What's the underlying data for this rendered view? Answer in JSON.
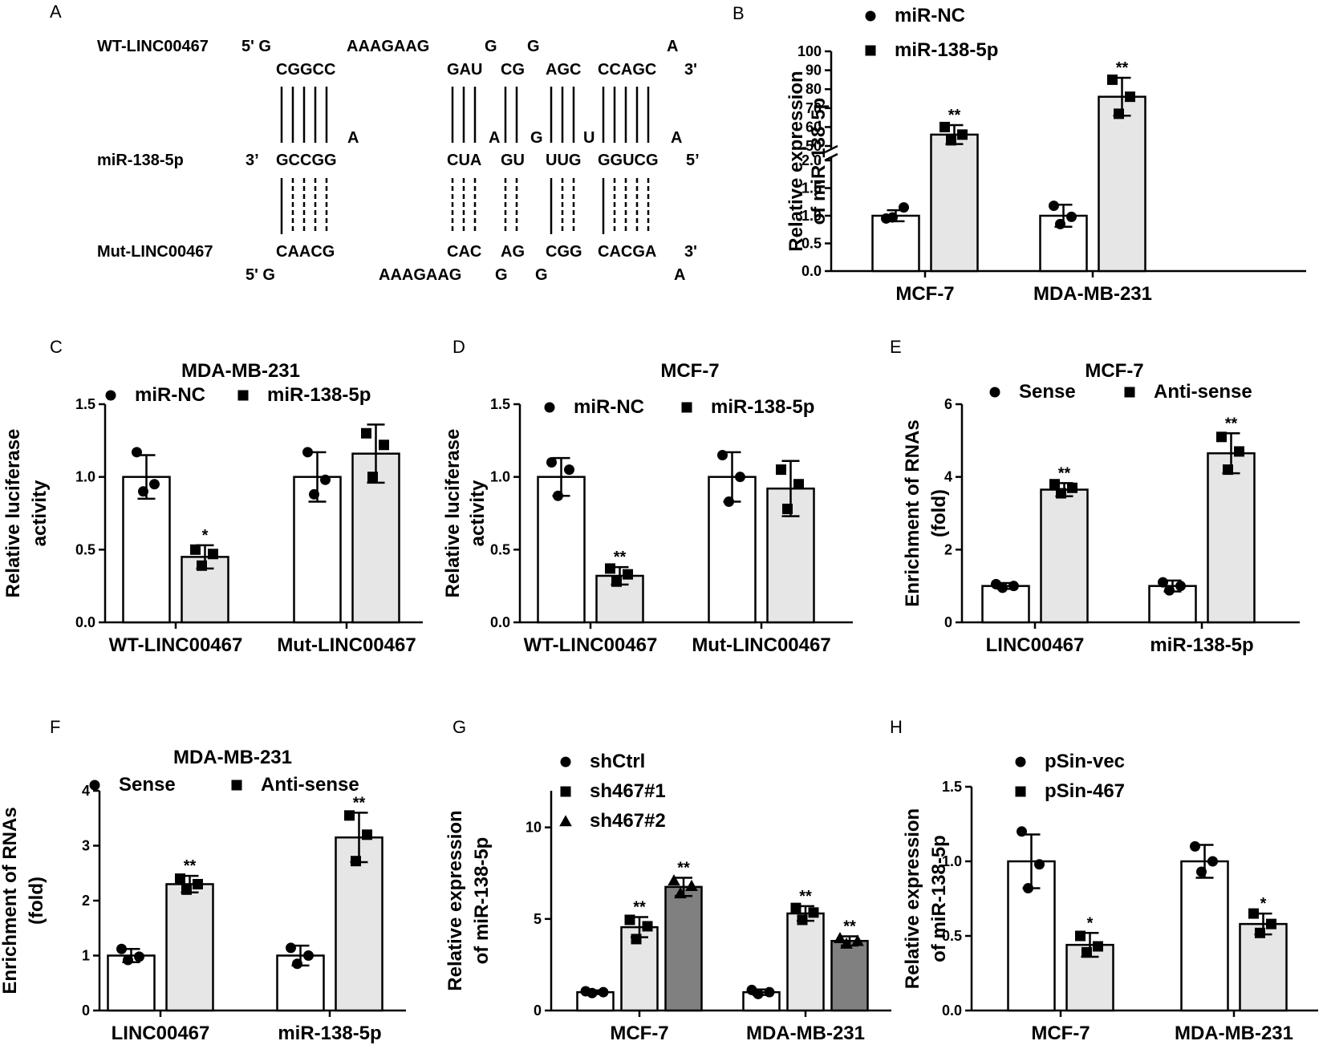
{
  "figure": {
    "panel_labels": [
      "A",
      "B",
      "C",
      "D",
      "E",
      "F",
      "G",
      "H"
    ]
  },
  "colors": {
    "bar_white": "#ffffff",
    "bar_light": "#e6e6e6",
    "bar_dark": "#808080",
    "axis": "#000000"
  },
  "panel_a": {
    "wt_label": "WT-LINC00467",
    "mir_label": "miR-138-5p",
    "mut_label": "Mut-LINC00467",
    "wt_top_row": [
      "5' G",
      "AAAGAAG",
      "G",
      "G",
      "A"
    ],
    "wt_pair_row": [
      "CGGCC",
      "GAU",
      "CG",
      "AGC",
      "CCAGC",
      "3'"
    ],
    "mir_bulge_row": [
      "A",
      "A",
      "G",
      "U",
      "A"
    ],
    "mir_row": [
      "3’",
      "GCCGG",
      "CUA",
      "GU",
      "UUG",
      "GGUCG",
      "5’"
    ],
    "mut_pair_row": [
      "CAACG",
      "CAC",
      "AG",
      "CGG",
      "CACGA",
      "3'"
    ],
    "mut_bottom_row": [
      "5' G",
      "AAAGAAG",
      "G",
      "G",
      "A"
    ]
  },
  "chart_data": [
    {
      "panel": "B",
      "type": "bar",
      "title": "",
      "ylabel": "Relative expression of miR-138-5p",
      "ylabel_lines": [
        "Relative expression",
        "of miR-138-5p"
      ],
      "xlabel": "",
      "categories": [
        "MCF-7",
        "MDA-MB-231"
      ],
      "broken_axis": true,
      "lower_ylim": [
        0,
        2.0
      ],
      "lower_ticks": [
        "0.0",
        "0.5",
        "1.0",
        "1.5",
        "2.0"
      ],
      "upper_ylim": [
        50,
        100
      ],
      "upper_ticks": [
        "50",
        "60",
        "70",
        "80",
        "90",
        "100"
      ],
      "legend": [
        "miR-NC",
        "miR-138-5p"
      ],
      "legend_markers": [
        "circle",
        "square"
      ],
      "series": [
        {
          "name": "miR-NC",
          "values": [
            1.0,
            1.0
          ],
          "err": [
            0.1,
            0.2
          ],
          "points": [
            [
              0.95,
              1.15,
              0.97
            ],
            [
              1.18,
              0.98,
              0.85
            ]
          ],
          "sig": [
            "",
            ""
          ],
          "fill": "white"
        },
        {
          "name": "miR-138-5p",
          "values": [
            56,
            76
          ],
          "err": [
            5,
            10
          ],
          "points": [
            [
              60,
              56,
              53
            ],
            [
              85,
              76,
              67
            ]
          ],
          "sig": [
            "**",
            "**"
          ],
          "fill": "light"
        }
      ]
    },
    {
      "panel": "C",
      "type": "bar",
      "title": "MDA-MB-231",
      "ylabel": "Relative luciferase activity",
      "ylabel_lines": [
        "Relative luciferase",
        "activity"
      ],
      "categories": [
        "WT-LINC00467",
        "Mut-LINC00467"
      ],
      "ylim": [
        0,
        1.5
      ],
      "yticks": [
        "0.0",
        "0.5",
        "1.0",
        "1.5"
      ],
      "legend": [
        "miR-NC",
        "miR-138-5p"
      ],
      "legend_markers": [
        "circle",
        "square"
      ],
      "series": [
        {
          "name": "miR-NC",
          "values": [
            1.0,
            1.0
          ],
          "err": [
            0.15,
            0.17
          ],
          "points": [
            [
              1.17,
              0.95,
              0.9
            ],
            [
              1.17,
              0.98,
              0.88
            ]
          ],
          "sig": [
            "",
            ""
          ],
          "fill": "white"
        },
        {
          "name": "miR-138-5p",
          "values": [
            0.45,
            1.16
          ],
          "err": [
            0.08,
            0.2
          ],
          "points": [
            [
              0.5,
              0.47,
              0.39
            ],
            [
              1.3,
              1.22,
              1.0
            ]
          ],
          "sig": [
            "*",
            ""
          ],
          "fill": "light"
        }
      ]
    },
    {
      "panel": "D",
      "type": "bar",
      "title": "MCF-7",
      "ylabel": "Relative luciferase activity",
      "ylabel_lines": [
        "Relative luciferase",
        "activity"
      ],
      "categories": [
        "WT-LINC00467",
        "Mut-LINC00467"
      ],
      "ylim": [
        0,
        1.5
      ],
      "yticks": [
        "0.0",
        "0.5",
        "1.0",
        "1.5"
      ],
      "legend": [
        "miR-NC",
        "miR-138-5p"
      ],
      "legend_markers": [
        "circle",
        "square"
      ],
      "series": [
        {
          "name": "miR-NC",
          "values": [
            1.0,
            1.0
          ],
          "err": [
            0.13,
            0.17
          ],
          "points": [
            [
              1.1,
              1.05,
              0.87
            ],
            [
              1.15,
              1.0,
              0.83
            ]
          ],
          "sig": [
            "",
            ""
          ],
          "fill": "white"
        },
        {
          "name": "miR-138-5p",
          "values": [
            0.32,
            0.92
          ],
          "err": [
            0.06,
            0.19
          ],
          "points": [
            [
              0.37,
              0.33,
              0.28
            ],
            [
              1.05,
              0.95,
              0.78
            ]
          ],
          "sig": [
            "**",
            ""
          ],
          "fill": "light"
        }
      ]
    },
    {
      "panel": "E",
      "type": "bar",
      "title": "MCF-7",
      "ylabel": "Enrichment of RNAs (fold)",
      "ylabel_lines": [
        "Enrichment of RNAs",
        "(fold)"
      ],
      "categories": [
        "LINC00467",
        "miR-138-5p"
      ],
      "ylim": [
        0,
        6
      ],
      "yticks": [
        "0",
        "2",
        "4",
        "6"
      ],
      "legend": [
        "Sense",
        "Anti-sense"
      ],
      "legend_markers": [
        "circle",
        "square"
      ],
      "series": [
        {
          "name": "Sense",
          "values": [
            1.0,
            1.0
          ],
          "err": [
            0.08,
            0.15
          ],
          "points": [
            [
              1.05,
              1.0,
              0.95
            ],
            [
              1.1,
              1.0,
              0.88
            ]
          ],
          "sig": [
            "",
            ""
          ],
          "fill": "white"
        },
        {
          "name": "Anti-sense",
          "values": [
            3.65,
            4.65
          ],
          "err": [
            0.18,
            0.55
          ],
          "points": [
            [
              3.8,
              3.7,
              3.55
            ],
            [
              5.1,
              4.7,
              4.2
            ]
          ],
          "sig": [
            "**",
            "**"
          ],
          "fill": "light"
        }
      ]
    },
    {
      "panel": "F",
      "type": "bar",
      "title": "MDA-MB-231",
      "ylabel": "Enrichment of RNAs (fold)",
      "ylabel_lines": [
        "Enrichment of RNAs",
        "(fold)"
      ],
      "categories": [
        "LINC00467",
        "miR-138-5p"
      ],
      "ylim": [
        0,
        4
      ],
      "yticks": [
        "0",
        "1",
        "2",
        "3",
        "4"
      ],
      "legend": [
        "Sense",
        "Anti-sense"
      ],
      "legend_markers": [
        "circle",
        "square"
      ],
      "series": [
        {
          "name": "Sense",
          "values": [
            1.0,
            1.0
          ],
          "err": [
            0.12,
            0.18
          ],
          "points": [
            [
              1.12,
              0.98,
              0.92
            ],
            [
              1.14,
              1.0,
              0.85
            ]
          ],
          "sig": [
            "",
            ""
          ],
          "fill": "white"
        },
        {
          "name": "Anti-sense",
          "values": [
            2.3,
            3.15
          ],
          "err": [
            0.15,
            0.45
          ],
          "points": [
            [
              2.4,
              2.3,
              2.2
            ],
            [
              3.55,
              3.2,
              2.72
            ]
          ],
          "sig": [
            "**",
            "**"
          ],
          "fill": "light"
        }
      ]
    },
    {
      "panel": "G",
      "type": "bar",
      "title": "",
      "ylabel": "Relative expression of miR-138-5p",
      "ylabel_lines": [
        "Relative expression",
        "of miR-138-5p"
      ],
      "categories": [
        "MCF-7",
        "MDA-MB-231"
      ],
      "ylim": [
        0,
        12
      ],
      "yticks": [
        "0",
        "5",
        "10"
      ],
      "ytick_values": [
        0,
        5,
        10
      ],
      "legend": [
        "shCtrl",
        "sh467#1",
        "sh467#2"
      ],
      "legend_markers": [
        "circle",
        "square",
        "triangle"
      ],
      "series": [
        {
          "name": "shCtrl",
          "values": [
            1.0,
            1.0
          ],
          "err": [
            0.1,
            0.15
          ],
          "points": [
            [
              1.05,
              1.0,
              0.95
            ],
            [
              1.12,
              1.0,
              0.9
            ]
          ],
          "sig": [
            "",
            ""
          ],
          "fill": "white"
        },
        {
          "name": "sh467#1",
          "values": [
            4.55,
            5.3
          ],
          "err": [
            0.55,
            0.4
          ],
          "points": [
            [
              4.95,
              4.6,
              3.9
            ],
            [
              5.6,
              5.35,
              4.95
            ]
          ],
          "sig": [
            "**",
            "**"
          ],
          "fill": "light"
        },
        {
          "name": "sh467#2",
          "values": [
            6.75,
            3.8
          ],
          "err": [
            0.5,
            0.25
          ],
          "points": [
            [
              7.1,
              6.8,
              6.4
            ],
            [
              3.95,
              3.8,
              3.65
            ]
          ],
          "sig": [
            "**",
            "**"
          ],
          "fill": "dark"
        }
      ]
    },
    {
      "panel": "H",
      "type": "bar",
      "title": "",
      "ylabel": "Relative expression of miR-138-5p",
      "ylabel_lines": [
        "Relative expression",
        "of miR-138-5p"
      ],
      "categories": [
        "MCF-7",
        "MDA-MB-231"
      ],
      "ylim": [
        0,
        1.5
      ],
      "yticks": [
        "0.0",
        "0.5",
        "1.0",
        "1.5"
      ],
      "legend": [
        "pSin-vec",
        "pSin-467"
      ],
      "legend_markers": [
        "circle",
        "square"
      ],
      "series": [
        {
          "name": "pSin-vec",
          "values": [
            1.0,
            1.0
          ],
          "err": [
            0.18,
            0.11
          ],
          "points": [
            [
              1.2,
              0.98,
              0.82
            ],
            [
              1.1,
              1.0,
              0.93
            ]
          ],
          "sig": [
            "",
            ""
          ],
          "fill": "white"
        },
        {
          "name": "pSin-467",
          "values": [
            0.44,
            0.58
          ],
          "err": [
            0.08,
            0.07
          ],
          "points": [
            [
              0.5,
              0.43,
              0.39
            ],
            [
              0.65,
              0.58,
              0.52
            ]
          ],
          "sig": [
            "*",
            "*"
          ],
          "fill": "light"
        }
      ]
    }
  ]
}
